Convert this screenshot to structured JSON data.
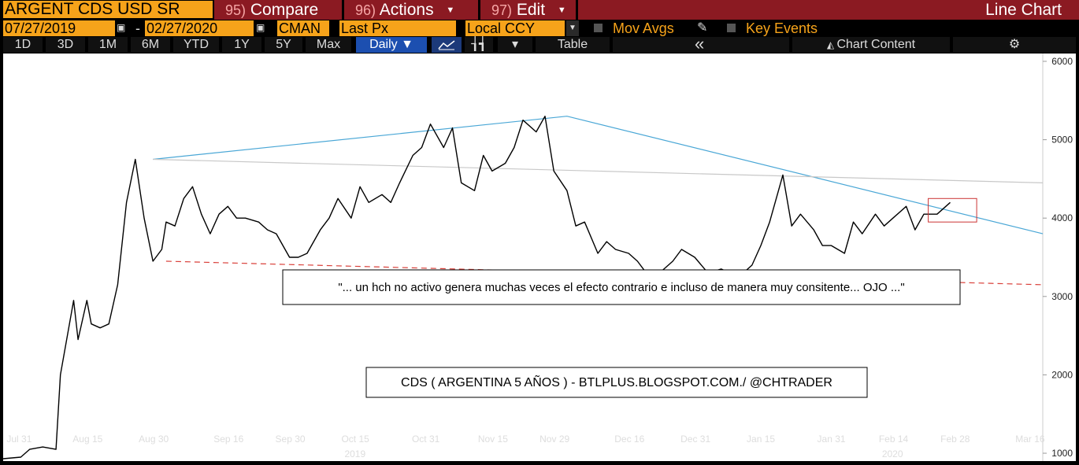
{
  "toolbar": {
    "ticker": "ARGENT CDS USD SR",
    "compare_num": "95)",
    "compare_label": "Compare",
    "actions_num": "96)",
    "actions_label": "Actions",
    "edit_num": "97)",
    "edit_label": "Edit",
    "view_title": "Line Chart"
  },
  "settings": {
    "start_date": "07/27/2019",
    "end_date": "02/27/2020",
    "date_sep": "-",
    "source": "CMAN",
    "field": "Last Px",
    "currency": "Local CCY",
    "mov_avgs": "Mov Avgs",
    "key_events": "Key Events"
  },
  "ranges": [
    "1D",
    "3D",
    "1M",
    "6M",
    "YTD",
    "1Y",
    "5Y",
    "Max"
  ],
  "period": "Daily ▼",
  "table_label": "Table",
  "collapse_label": "«",
  "chart_content_label": "Chart Content",
  "colors": {
    "series": "#000000",
    "trendline": "#4aa7d6",
    "support": "#d9403a",
    "orange": "#f6a31a",
    "red": "#8b1a22",
    "box": "#cc3333"
  },
  "chart_data": {
    "type": "line",
    "ylim": [
      900,
      6100
    ],
    "yticks": [
      1000,
      2000,
      3000,
      4000,
      5000,
      6000
    ],
    "xlim": [
      "2019-07-27",
      "2020-03-19"
    ],
    "xticks": [
      {
        "label": "Jul 31",
        "date": "2019-07-31"
      },
      {
        "label": "Aug 15",
        "date": "2019-08-15"
      },
      {
        "label": "Aug 30",
        "date": "2019-08-30"
      },
      {
        "label": "Sep 16",
        "date": "2019-09-16"
      },
      {
        "label": "Sep 30",
        "date": "2019-09-30"
      },
      {
        "label": "Oct 15",
        "date": "2019-10-15"
      },
      {
        "label": "Oct 31",
        "date": "2019-10-31"
      },
      {
        "label": "Nov 15",
        "date": "2019-11-15"
      },
      {
        "label": "Nov 29",
        "date": "2019-11-29"
      },
      {
        "label": "Dec 16",
        "date": "2019-12-16"
      },
      {
        "label": "Dec 31",
        "date": "2019-12-31"
      },
      {
        "label": "Jan 15",
        "date": "2020-01-15"
      },
      {
        "label": "Jan 31",
        "date": "2020-01-31"
      },
      {
        "label": "Feb 14",
        "date": "2020-02-14"
      },
      {
        "label": "Feb 28",
        "date": "2020-02-28"
      },
      {
        "label": "Mar 16",
        "date": "2020-03-16"
      }
    ],
    "year_labels": [
      {
        "label": "2019",
        "date": "2019-10-15"
      },
      {
        "label": "2020",
        "date": "2020-02-14"
      }
    ],
    "series": [
      {
        "x": [
          "2019-07-27",
          "2019-07-31",
          "2019-08-02",
          "2019-08-05",
          "2019-08-08",
          "2019-08-09",
          "2019-08-12",
          "2019-08-13",
          "2019-08-15",
          "2019-08-16",
          "2019-08-18",
          "2019-08-20",
          "2019-08-22",
          "2019-08-24",
          "2019-08-26",
          "2019-08-28",
          "2019-08-30",
          "2019-09-01",
          "2019-09-02",
          "2019-09-04",
          "2019-09-06",
          "2019-09-08",
          "2019-09-10",
          "2019-09-12",
          "2019-09-14",
          "2019-09-16",
          "2019-09-18",
          "2019-09-20",
          "2019-09-23",
          "2019-09-25",
          "2019-09-27",
          "2019-09-30",
          "2019-10-02",
          "2019-10-04",
          "2019-10-07",
          "2019-10-09",
          "2019-10-11",
          "2019-10-14",
          "2019-10-16",
          "2019-10-18",
          "2019-10-21",
          "2019-10-23",
          "2019-10-25",
          "2019-10-28",
          "2019-10-30",
          "2019-11-01",
          "2019-11-04",
          "2019-11-06",
          "2019-11-08",
          "2019-11-11",
          "2019-11-13",
          "2019-11-15",
          "2019-11-18",
          "2019-11-20",
          "2019-11-22",
          "2019-11-25",
          "2019-11-27",
          "2019-11-29",
          "2019-12-02",
          "2019-12-04",
          "2019-12-06",
          "2019-12-09",
          "2019-12-11",
          "2019-12-13",
          "2019-12-16",
          "2019-12-18",
          "2019-12-20",
          "2019-12-23",
          "2019-12-26",
          "2019-12-28",
          "2019-12-31",
          "2020-01-03",
          "2020-01-06",
          "2020-01-08",
          "2020-01-10",
          "2020-01-13",
          "2020-01-15",
          "2020-01-17",
          "2020-01-20",
          "2020-01-22",
          "2020-01-24",
          "2020-01-27",
          "2020-01-29",
          "2020-01-31",
          "2020-02-03",
          "2020-02-05",
          "2020-02-07",
          "2020-02-10",
          "2020-02-12",
          "2020-02-14",
          "2020-02-17",
          "2020-02-19",
          "2020-02-21",
          "2020-02-24",
          "2020-02-26",
          "2020-02-27"
        ],
        "values": [
          930,
          950,
          1050,
          1080,
          1050,
          2000,
          2950,
          2450,
          2950,
          2650,
          2600,
          2650,
          3150,
          4200,
          4750,
          4000,
          3450,
          3600,
          3950,
          3900,
          4250,
          4400,
          4050,
          3800,
          4050,
          4150,
          4000,
          4000,
          3950,
          3850,
          3800,
          3500,
          3500,
          3550,
          3850,
          4000,
          4250,
          4000,
          4400,
          4200,
          4300,
          4200,
          4450,
          4800,
          4900,
          5200,
          4900,
          5150,
          4450,
          4350,
          4800,
          4600,
          4700,
          4900,
          5250,
          5100,
          5300,
          4600,
          4350,
          3900,
          3950,
          3550,
          3700,
          3600,
          3550,
          3450,
          3300,
          3300,
          3450,
          3600,
          3500,
          3300,
          3350,
          3300,
          3250,
          3400,
          3650,
          3950,
          4550,
          3900,
          4050,
          3850,
          3650,
          3650,
          3550,
          3950,
          3800,
          4050,
          3900,
          4000,
          4150,
          3850,
          4050,
          4050,
          4150,
          4200
        ]
      }
    ],
    "trendlines": [
      {
        "kind": "resistance",
        "color": "#4aa7d6",
        "points": [
          [
            "2019-08-30",
            4750
          ],
          [
            "2019-12-02",
            5300
          ],
          [
            "2020-03-19",
            3800
          ]
        ]
      },
      {
        "kind": "neckline",
        "color": "#c8c8c8",
        "points": [
          [
            "2019-08-30",
            4750
          ],
          [
            "2020-03-19",
            4450
          ]
        ]
      },
      {
        "kind": "support",
        "color": "#d9403a",
        "dashed": true,
        "points": [
          [
            "2019-09-02",
            3450
          ],
          [
            "2020-03-19",
            3150
          ]
        ]
      }
    ],
    "highlight_box": {
      "x": [
        "2020-02-22",
        "2020-03-04"
      ],
      "y": [
        3950,
        4250
      ]
    },
    "annotations": [
      "\"... un hch no activo genera muchas veces el efecto contrario e incluso de manera muy consitente... OJO ...\"",
      "CDS ( ARGENTINA 5 AÑOS ) - BTLPLUS.BLOGSPOT.COM./ @CHTRADER"
    ]
  }
}
